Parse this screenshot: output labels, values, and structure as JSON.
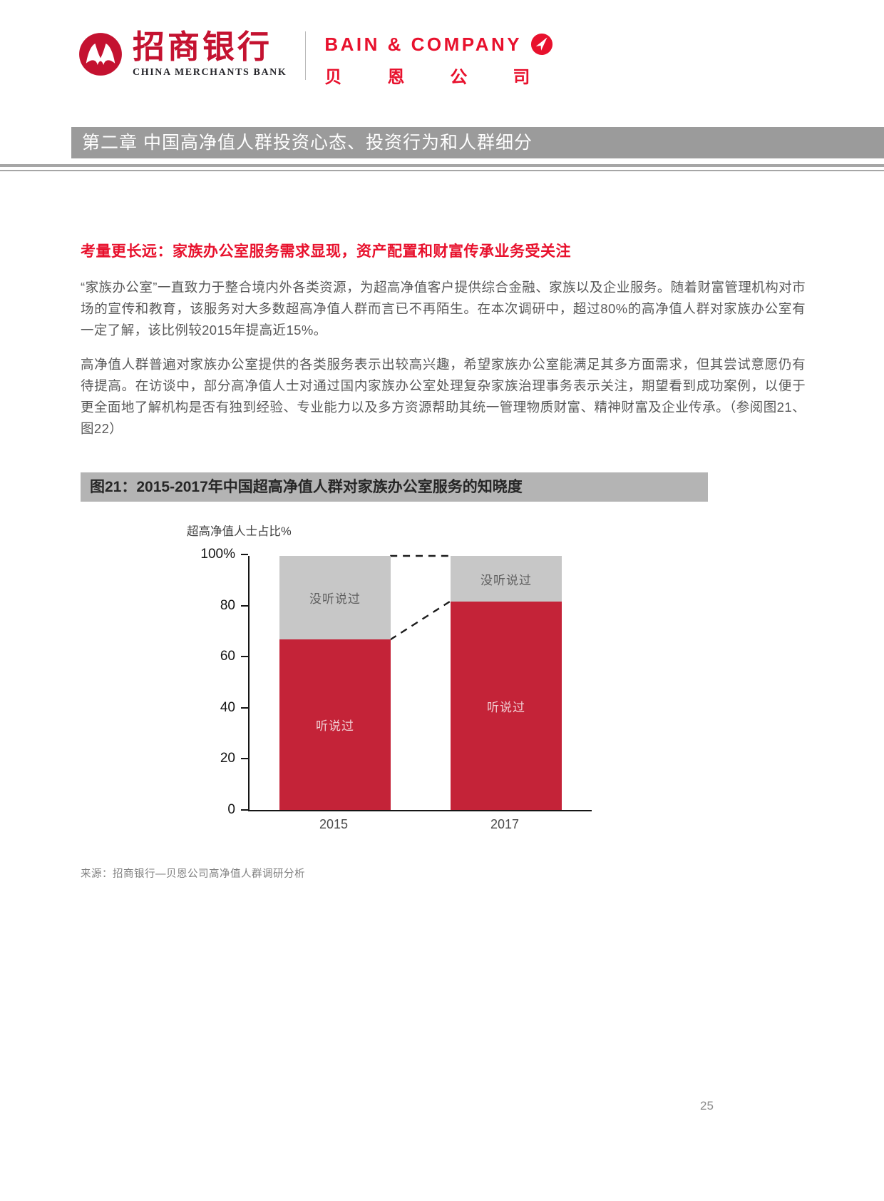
{
  "page_number": "25",
  "header": {
    "cmb": {
      "name_cn": "招商银行",
      "name_en": "CHINA MERCHANTS BANK"
    },
    "bain": {
      "name_en": "BAIN & COMPANY",
      "name_cn": "贝恩公司"
    }
  },
  "chapter_bar": {
    "title": "第二章 中国高净值人群投资心态、投资行为和人群细分"
  },
  "section": {
    "heading": "考量更长远：家族办公室服务需求显现，资产配置和财富传承业务受关注",
    "paragraphs": [
      "“家族办公室”一直致力于整合境内外各类资源，为超高净值客户提供综合金融、家族以及企业服务。随着财富管理机构对市场的宣传和教育，该服务对大多数超高净值人群而言已不再陌生。在本次调研中，超过80%的高净值人群对家族办公室有一定了解，该比例较2015年提高近15%。",
      "高净值人群普遍对家族办公室提供的各类服务表示出较高兴趣，希望家族办公室能满足其多方面需求，但其尝试意愿仍有待提高。在访谈中，部分高净值人士对通过国内家族办公室处理复杂家族治理事务表示关注，期望看到成功案例，以便于更全面地了解机构是否有独到经验、专业能力以及多方资源帮助其统一管理物质财富、精神财富及企业传承。（参阅图21、图22）"
    ]
  },
  "figure": {
    "title": "图21：2015-2017年中国超高净值人群对家族办公室服务的知晓度",
    "axis_label": "超高净值人士占比%",
    "source": "来源：招商银行—贝恩公司高净值人群调研分析"
  },
  "chart_data": {
    "type": "bar",
    "stacked": true,
    "categories": [
      "2015",
      "2017"
    ],
    "series": [
      {
        "name": "听说过",
        "values": [
          67,
          82
        ],
        "color": "#c42338"
      },
      {
        "name": "没听说过",
        "values": [
          33,
          18
        ],
        "color": "#c7c7c7"
      }
    ],
    "ylabel": "超高净值人士占比%",
    "ylim": [
      0,
      100
    ],
    "yticks": [
      "0",
      "20",
      "40",
      "60",
      "80",
      "100%"
    ],
    "legend_position": "none",
    "annotations": "dashed lines connect 100% tops and the 67%→82% segment boundary between the two bars"
  },
  "colors": {
    "accent_red": "#e8112d",
    "cmb_red": "#c41230",
    "bar_red": "#c42338",
    "bar_gray": "#c7c7c7",
    "chapter_bar_gray": "#9b9b9b",
    "figure_bar_gray": "#b4b4b4"
  }
}
